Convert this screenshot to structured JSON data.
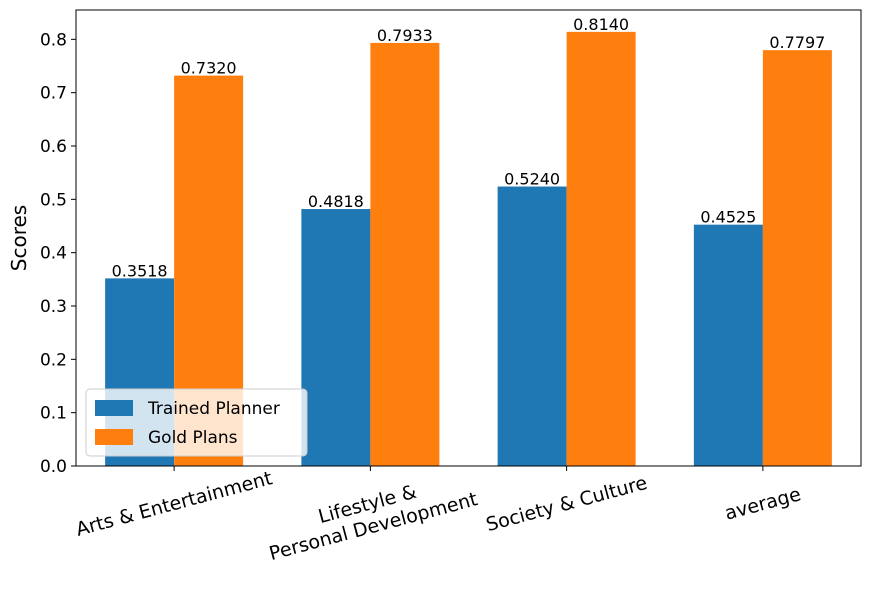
{
  "chart_data": {
    "type": "bar",
    "categories": [
      [
        "Arts & Entertainment"
      ],
      [
        "Lifestyle &",
        "Personal Development"
      ],
      [
        "Society & Culture"
      ],
      [
        "average"
      ]
    ],
    "series": [
      {
        "name": "Trained Planner",
        "color": "#1f77b4",
        "values": [
          0.3518,
          0.4818,
          0.524,
          0.4525
        ],
        "labels": [
          "0.3518",
          "0.4818",
          "0.5240",
          "0.4525"
        ]
      },
      {
        "name": "Gold Plans",
        "color": "#ff7f0e",
        "values": [
          0.732,
          0.7933,
          0.814,
          0.7797
        ],
        "labels": [
          "0.7320",
          "0.7933",
          "0.8140",
          "0.7797"
        ]
      }
    ],
    "title": "",
    "xlabel": "",
    "ylabel": "Scores",
    "ylim": [
      0,
      0.855
    ],
    "yticks": [
      0.0,
      0.1,
      0.2,
      0.3,
      0.4,
      0.5,
      0.6,
      0.7,
      0.8
    ],
    "ytick_labels": [
      "0.0",
      "0.1",
      "0.2",
      "0.3",
      "0.4",
      "0.5",
      "0.6",
      "0.7",
      "0.8"
    ],
    "legend_position": "lower-left",
    "grid": false
  }
}
